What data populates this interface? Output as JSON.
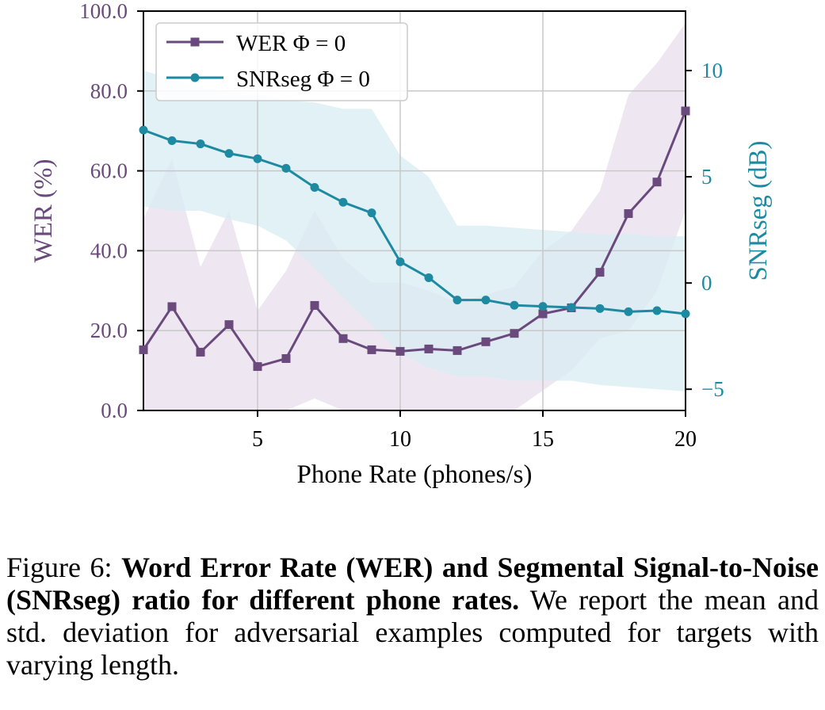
{
  "chart_data": {
    "type": "line",
    "xlabel": "Phone Rate (phones/s)",
    "ylabel_left": "WER (%)",
    "ylabel_right": "SNRseg (dB)",
    "xlim": [
      1,
      20
    ],
    "ylim_left": [
      0,
      100
    ],
    "ylim_right": [
      -6.0,
      12.8
    ],
    "x_ticks": [
      5,
      10,
      15,
      20
    ],
    "y_ticks_left": [
      0,
      20,
      40,
      60,
      80,
      100
    ],
    "y_ticks_left_labels": [
      "0.0",
      "20.0",
      "40.0",
      "60.0",
      "80.0",
      "100.0"
    ],
    "y_ticks_right": [
      -5,
      0,
      5,
      10
    ],
    "y_ticks_right_labels": [
      "−5",
      "0",
      "5",
      "10"
    ],
    "grid": true,
    "legend_position": "top-left",
    "x": [
      1,
      2,
      3,
      4,
      5,
      6,
      7,
      8,
      9,
      10,
      11,
      12,
      13,
      14,
      15,
      16,
      17,
      18,
      19,
      20
    ],
    "series": [
      {
        "name": "WER Φ = 0",
        "axis": "left",
        "marker": "square",
        "color": "#6a4a7c",
        "values": [
          15.2,
          26.0,
          14.6,
          21.5,
          11.0,
          13.0,
          26.3,
          18.0,
          15.2,
          14.8,
          15.4,
          15.0,
          17.2,
          19.3,
          24.2,
          25.7,
          34.6,
          49.3,
          57.2,
          75.0
        ],
        "std_upper": [
          48,
          63,
          36,
          50,
          25,
          35,
          50,
          38,
          32,
          32,
          30,
          27,
          29,
          31,
          40,
          45,
          55,
          79,
          87,
          97
        ],
        "std_lower": [
          0,
          0,
          0,
          0,
          0,
          0,
          3,
          0,
          0,
          0,
          0,
          0,
          0,
          0,
          5,
          10,
          18,
          20,
          30,
          50
        ]
      },
      {
        "name": "SNRseg Φ = 0",
        "axis": "right",
        "marker": "circle",
        "color": "#1e8aa2",
        "values": [
          7.2,
          6.7,
          6.55,
          6.1,
          5.85,
          5.4,
          4.5,
          3.8,
          3.3,
          1.0,
          0.25,
          -0.8,
          -0.8,
          -1.05,
          -1.1,
          -1.15,
          -1.2,
          -1.35,
          -1.3,
          -1.45
        ],
        "std_upper": [
          10.0,
          9.6,
          9.2,
          9.0,
          8.9,
          8.6,
          8.5,
          8.2,
          8.2,
          6.0,
          5.0,
          2.7,
          2.7,
          2.6,
          2.5,
          2.4,
          2.3,
          2.3,
          2.2,
          2.2
        ],
        "std_lower": [
          3.6,
          3.4,
          3.4,
          3.0,
          2.7,
          2.0,
          0.7,
          -0.7,
          -2.0,
          -3.3,
          -4.0,
          -4.4,
          -4.4,
          -4.6,
          -4.6,
          -4.6,
          -4.8,
          -4.9,
          -5.0,
          -5.1
        ]
      }
    ]
  },
  "caption": {
    "prefix": "Figure 6: ",
    "bold": "Word Error Rate (WER) and Segmental Signal-to-Noise (SNRseg) ratio for different phone rates.",
    "rest": " We report the mean and std. deviation for adversarial examples computed for targets with varying length."
  },
  "colors": {
    "wer": "#6a4a7c",
    "wer_band": "#ece4ef",
    "snr": "#1e8aa2",
    "snr_band": "#d8ecf3",
    "grid": "#c8c8c8"
  }
}
